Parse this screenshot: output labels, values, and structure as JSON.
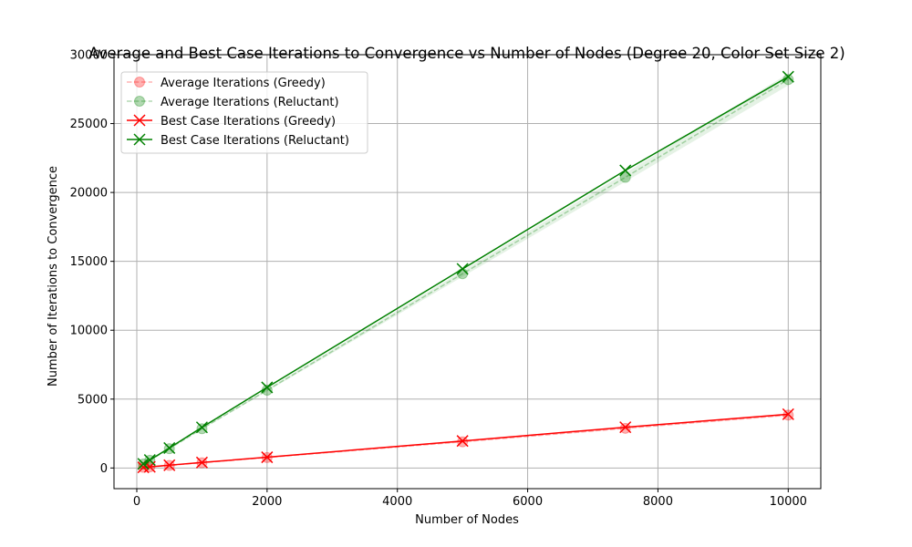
{
  "chart_data": {
    "type": "line",
    "title": "Average and Best Case Iterations to Convergence vs Number of Nodes (Degree 20, Color Set Size 2)",
    "xlabel": "Number of Nodes",
    "ylabel": "Number of Iterations to Convergence",
    "xlim": [
      -350,
      10500
    ],
    "ylim": [
      -1500,
      30000
    ],
    "xticks": [
      0,
      2000,
      4000,
      6000,
      8000,
      10000
    ],
    "xtick_labels": [
      "0",
      "2000",
      "4000",
      "6000",
      "8000",
      "10000"
    ],
    "yticks": [
      0,
      5000,
      10000,
      15000,
      20000,
      25000,
      30000
    ],
    "ytick_labels": [
      "0",
      "5000",
      "10000",
      "15000",
      "20000",
      "25000",
      "30000"
    ],
    "grid": true,
    "legend_position": "upper-left",
    "x": [
      100,
      200,
      500,
      1000,
      2000,
      5000,
      7500,
      10000
    ],
    "series": [
      {
        "name": "Average Iterations (Greedy)",
        "color": "#ff0000",
        "style": "dashed",
        "marker": "circle",
        "alpha": 0.3,
        "band": true,
        "values": [
          45,
          80,
          190,
          380,
          760,
          1900,
          2880,
          3840
        ]
      },
      {
        "name": "Average Iterations (Reluctant)",
        "color": "#008000",
        "style": "dashed",
        "marker": "circle",
        "alpha": 0.3,
        "band": true,
        "values": [
          290,
          560,
          1400,
          2850,
          5650,
          14100,
          21100,
          28200
        ]
      },
      {
        "name": "Best Case Iterations (Greedy)",
        "color": "#ff0000",
        "style": "solid",
        "marker": "x",
        "alpha": 1,
        "band": false,
        "values": [
          45,
          80,
          200,
          400,
          780,
          1960,
          2960,
          3900
        ]
      },
      {
        "name": "Best Case Iterations (Reluctant)",
        "color": "#008000",
        "style": "solid",
        "marker": "x",
        "alpha": 1,
        "band": false,
        "values": [
          300,
          580,
          1450,
          2950,
          5850,
          14450,
          21600,
          28400
        ]
      }
    ]
  }
}
